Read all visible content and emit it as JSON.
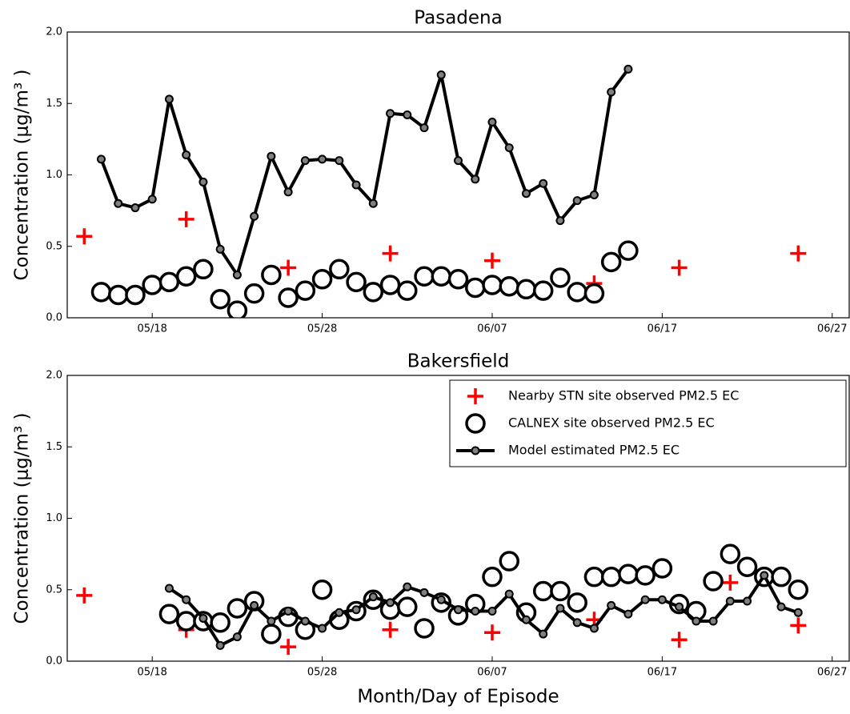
{
  "chart_data": [
    {
      "type": "line",
      "title": "Pasadena",
      "ylabel": "Concentration (μg/m³ )",
      "xlim": [
        "05/13",
        "06/28"
      ],
      "xticks": [
        "05/18",
        "05/28",
        "06/07",
        "06/17",
        "06/27"
      ],
      "ylim": [
        0,
        2
      ],
      "yticks": [
        {
          "value": 0,
          "label": "0.0"
        },
        0.5,
        {
          "value": 1,
          "label": "1.0"
        },
        1.5,
        {
          "value": 2,
          "label": "2.0"
        }
      ],
      "series": [
        {
          "marker": "+",
          "color": "#ff0000",
          "line": false,
          "x": [
            "05/14",
            "05/20",
            "05/26",
            "06/01",
            "06/07",
            "06/13",
            "06/18",
            "06/25"
          ],
          "values": [
            0.57,
            0.69,
            0.35,
            0.45,
            0.4,
            0.24,
            0.35,
            0.45
          ]
        },
        {
          "marker": "o",
          "color": "#000000",
          "line": false,
          "x": [
            "05/15",
            "05/16",
            "05/17",
            "05/18",
            "05/19",
            "05/20",
            "05/21",
            "05/22",
            "05/23",
            "05/24",
            "05/25",
            "05/26",
            "05/27",
            "05/28",
            "05/29",
            "05/30",
            "05/31",
            "06/01",
            "06/02",
            "06/03",
            "06/04",
            "06/05",
            "06/06",
            "06/07",
            "06/08",
            "06/09",
            "06/10",
            "06/11",
            "06/12",
            "06/13",
            "06/14",
            "06/15"
          ],
          "values": [
            0.18,
            0.16,
            0.16,
            0.23,
            0.25,
            0.29,
            0.34,
            0.13,
            0.05,
            0.17,
            0.3,
            0.14,
            0.19,
            0.27,
            0.34,
            0.25,
            0.18,
            0.23,
            0.19,
            0.29,
            0.29,
            0.27,
            0.21,
            0.23,
            0.22,
            0.2,
            0.19,
            0.28,
            0.18,
            0.17,
            0.39,
            0.47
          ]
        },
        {
          "marker": ".",
          "color": "#000000",
          "line": true,
          "x": [
            "05/15",
            "05/16",
            "05/17",
            "05/18",
            "05/19",
            "05/20",
            "05/21",
            "05/22",
            "05/23",
            "05/24",
            "05/25",
            "05/26",
            "05/27",
            "05/28",
            "05/29",
            "05/30",
            "05/31",
            "06/01",
            "06/02",
            "06/03",
            "06/04",
            "06/05",
            "06/06",
            "06/07",
            "06/08",
            "06/09",
            "06/10",
            "06/11",
            "06/12",
            "06/13",
            "06/14",
            "06/15"
          ],
          "values": [
            1.11,
            0.8,
            0.77,
            0.83,
            1.53,
            1.14,
            0.95,
            0.48,
            0.3,
            0.71,
            1.13,
            0.88,
            1.1,
            1.11,
            1.1,
            0.93,
            0.8,
            1.43,
            1.42,
            1.33,
            1.7,
            1.1,
            0.97,
            1.37,
            1.19,
            0.87,
            0.94,
            0.68,
            0.82,
            0.86,
            1.58,
            1.74
          ]
        }
      ]
    },
    {
      "type": "line",
      "title": "Bakersfield",
      "ylabel": "Concentration (μg/m³ )",
      "xlabel": "Month/Day of Episode",
      "xlim": [
        "05/13",
        "06/28"
      ],
      "xticks": [
        "05/18",
        "05/28",
        "06/07",
        "06/17",
        "06/27"
      ],
      "ylim": [
        0,
        2
      ],
      "yticks": [
        {
          "value": 0,
          "label": "0.0"
        },
        0.5,
        {
          "value": 1,
          "label": "1.0"
        },
        1.5,
        {
          "value": 2,
          "label": "2.0"
        }
      ],
      "legend": "upper right",
      "series": [
        {
          "name": "Nearby STN site observed PM2.5 EC",
          "marker": "+",
          "color": "#ff0000",
          "line": false,
          "x": [
            "05/14",
            "05/20",
            "05/26",
            "06/01",
            "06/07",
            "06/13",
            "06/18",
            "06/21",
            "06/25"
          ],
          "values": [
            0.46,
            0.22,
            0.1,
            0.22,
            0.2,
            0.29,
            0.15,
            0.55,
            0.25
          ]
        },
        {
          "name": "CALNEX site observed PM2.5 EC",
          "marker": "o",
          "color": "#000000",
          "line": false,
          "x": [
            "05/19",
            "05/20",
            "05/21",
            "05/22",
            "05/23",
            "05/24",
            "05/25",
            "05/26",
            "05/27",
            "05/28",
            "05/29",
            "05/30",
            "05/31",
            "06/01",
            "06/02",
            "06/03",
            "06/04",
            "06/05",
            "06/06",
            "06/07",
            "06/08",
            "06/09",
            "06/10",
            "06/11",
            "06/12",
            "06/13",
            "06/14",
            "06/15",
            "06/16",
            "06/17",
            "06/18",
            "06/19",
            "06/20",
            "06/21",
            "06/22",
            "06/23",
            "06/24",
            "06/25"
          ],
          "values": [
            0.33,
            0.28,
            0.28,
            0.27,
            0.37,
            0.42,
            0.19,
            0.31,
            0.22,
            0.5,
            0.29,
            0.35,
            0.43,
            0.36,
            0.38,
            0.23,
            0.41,
            0.32,
            0.4,
            0.59,
            0.7,
            0.34,
            0.49,
            0.49,
            0.41,
            0.59,
            0.59,
            0.61,
            0.6,
            0.65,
            0.4,
            0.35,
            0.56,
            0.75,
            0.66,
            0.59,
            0.59,
            0.5
          ]
        },
        {
          "name": "Model estimated PM2.5 EC",
          "marker": ".",
          "color": "#000000",
          "line": true,
          "x": [
            "05/19",
            "05/20",
            "05/21",
            "05/22",
            "05/23",
            "05/24",
            "05/25",
            "05/26",
            "05/27",
            "05/28",
            "05/29",
            "05/30",
            "05/31",
            "06/01",
            "06/02",
            "06/03",
            "06/04",
            "06/05",
            "06/06",
            "06/07",
            "06/08",
            "06/09",
            "06/10",
            "06/11",
            "06/12",
            "06/13",
            "06/14",
            "06/15",
            "06/16",
            "06/17",
            "06/18",
            "06/19",
            "06/20",
            "06/21",
            "06/22",
            "06/23",
            "06/24",
            "06/25"
          ],
          "values": [
            0.51,
            0.43,
            0.3,
            0.11,
            0.17,
            0.39,
            0.28,
            0.35,
            0.28,
            0.23,
            0.34,
            0.36,
            0.45,
            0.41,
            0.52,
            0.48,
            0.43,
            0.36,
            0.35,
            0.35,
            0.47,
            0.29,
            0.19,
            0.37,
            0.27,
            0.23,
            0.39,
            0.33,
            0.43,
            0.43,
            0.38,
            0.28,
            0.28,
            0.42,
            0.42,
            0.6,
            0.38,
            0.34
          ]
        }
      ]
    }
  ]
}
